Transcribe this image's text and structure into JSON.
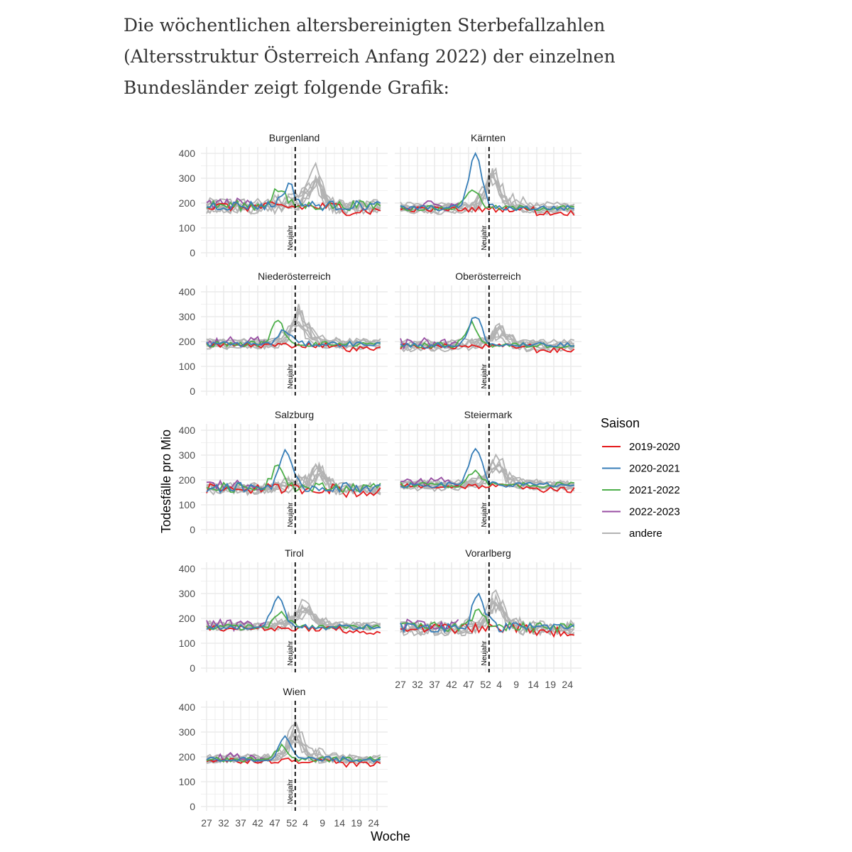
{
  "intro_text": "Die wöchentlichen altersbereinigten Sterbefallzahlen (Altersstruktur Österreich Anfang 2022) der einzelnen Bundesländer zeigt folgende Grafik:",
  "chart_data": {
    "type": "line",
    "facet_titles": [
      "Burgenland",
      "Kärnten",
      "Niederösterreich",
      "Oberösterreich",
      "Salzburg",
      "Steiermark",
      "Tirol",
      "Vorarlberg",
      "Wien"
    ],
    "xlabel": "Woche",
    "ylabel": "Todesfälle pro Mio",
    "x_tick_labels": [
      "27",
      "32",
      "37",
      "42",
      "47",
      "52",
      "4",
      "9",
      "14",
      "19",
      "24"
    ],
    "y_ticks": [
      0,
      100,
      200,
      300,
      400
    ],
    "ylim": [
      0,
      400
    ],
    "vline_label": "Neujahr",
    "legend": {
      "title": "Saison",
      "position": "right",
      "entries": [
        {
          "name": "2019-2020",
          "color": "#e41a1c"
        },
        {
          "name": "2020-2021",
          "color": "#377eb8"
        },
        {
          "name": "2021-2022",
          "color": "#4daf4a"
        },
        {
          "name": "2022-2023",
          "color": "#984ea3"
        },
        {
          "name": "andere",
          "color": "#b3b3b3"
        }
      ]
    },
    "series_profiles": {
      "Burgenland": {
        "peaks": [
          {
            "season": "2020-2021",
            "week": 51,
            "value": 270
          },
          {
            "season": "2021-2022",
            "week": 48,
            "value": 255
          },
          {
            "season": "andere",
            "week": 59,
            "value": 320
          }
        ],
        "baseline": 190
      },
      "Kärnten": {
        "peaks": [
          {
            "season": "2020-2021",
            "week": 49,
            "value": 400
          },
          {
            "season": "2021-2022",
            "week": 48,
            "value": 260
          },
          {
            "season": "andere",
            "week": 54,
            "value": 330
          }
        ],
        "baseline": 180
      },
      "Niederösterreich": {
        "peaks": [
          {
            "season": "2020-2021",
            "week": 50,
            "value": 245
          },
          {
            "season": "2021-2022",
            "week": 48,
            "value": 280
          },
          {
            "season": "andere",
            "week": 54,
            "value": 310
          }
        ],
        "baseline": 190
      },
      "Oberösterreich": {
        "peaks": [
          {
            "season": "2020-2021",
            "week": 49,
            "value": 300
          },
          {
            "season": "2021-2022",
            "week": 48,
            "value": 270
          },
          {
            "season": "andere",
            "week": 56,
            "value": 235
          }
        ],
        "baseline": 185
      },
      "Salzburg": {
        "peaks": [
          {
            "season": "2020-2021",
            "week": 50,
            "value": 305
          },
          {
            "season": "2021-2022",
            "week": 48,
            "value": 265
          },
          {
            "season": "andere",
            "week": 60,
            "value": 245
          }
        ],
        "baseline": 170
      },
      "Steiermark": {
        "peaks": [
          {
            "season": "2020-2021",
            "week": 49,
            "value": 330
          },
          {
            "season": "2021-2022",
            "week": 49,
            "value": 240
          },
          {
            "season": "andere",
            "week": 55,
            "value": 270
          }
        ],
        "baseline": 180
      },
      "Tirol": {
        "peaks": [
          {
            "season": "2020-2021",
            "week": 48,
            "value": 285
          },
          {
            "season": "2021-2022",
            "week": 49,
            "value": 225
          },
          {
            "season": "andere",
            "week": 56,
            "value": 245
          }
        ],
        "baseline": 165
      },
      "Vorarlberg": {
        "peaks": [
          {
            "season": "2020-2021",
            "week": 50,
            "value": 295
          },
          {
            "season": "2021-2022",
            "week": 50,
            "value": 245
          },
          {
            "season": "andere",
            "week": 55,
            "value": 285
          }
        ],
        "baseline": 165
      },
      "Wien": {
        "peaks": [
          {
            "season": "2020-2021",
            "week": 50,
            "value": 275
          },
          {
            "season": "2021-2022",
            "week": 49,
            "value": 240
          },
          {
            "season": "andere",
            "week": 53,
            "value": 300
          }
        ],
        "baseline": 190
      }
    }
  }
}
